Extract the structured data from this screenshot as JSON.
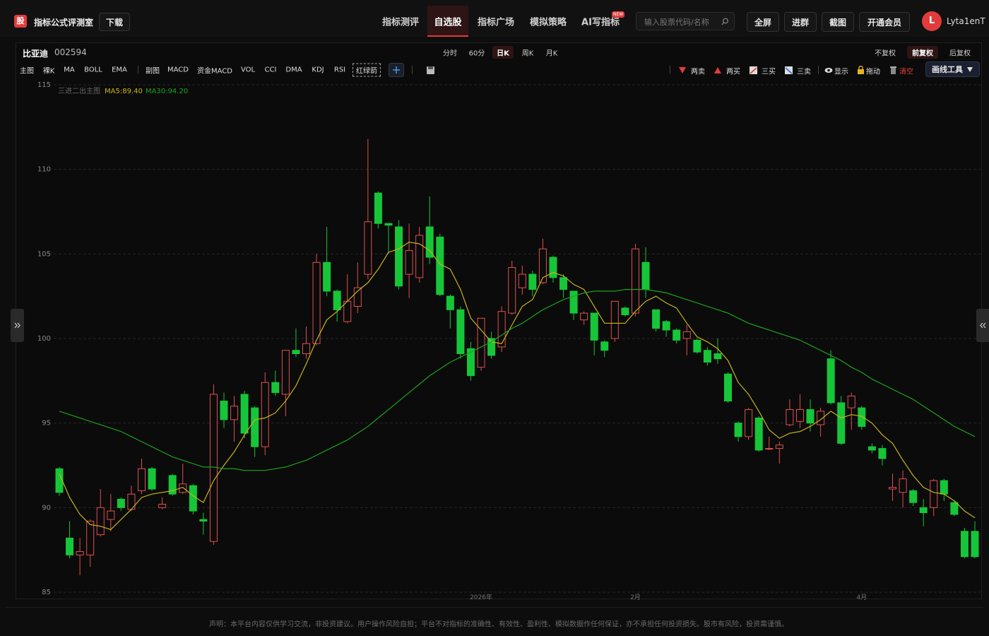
{
  "header": {
    "logo": "股",
    "title": "指标公式评测室",
    "download": "下载",
    "nav": [
      "指标测评",
      "自选股",
      "指标广场",
      "模拟策略",
      "AI写指标"
    ],
    "nav_badge": "NEW",
    "search_placeholder": "输入股票代码/名称",
    "buttons": [
      "全屏",
      "进群",
      "截图",
      "开通会员"
    ],
    "avatar": "L",
    "username": "Lyta1enT"
  },
  "stock": {
    "name": "比亚迪",
    "code": "002594"
  },
  "periods": [
    "分时",
    "60分",
    "日K",
    "周K",
    "月K"
  ],
  "adjust": [
    "不复权",
    "前复权",
    "后复权"
  ],
  "main_indicators": [
    "主图",
    "裸K",
    "MA",
    "BOLL",
    "EMA"
  ],
  "sub_indicators": [
    "副图",
    "MACD",
    "资金MACD",
    "VOL",
    "CCI",
    "DMA",
    "KDJ",
    "RSI",
    "红绿箭"
  ],
  "signal_tools": [
    "两卖",
    "两买",
    "三买",
    "三卖",
    "显示",
    "拖动",
    "清空"
  ],
  "draw_tool": "画线工具",
  "footer": "声明：本平台内容仅供学习交流，非投资建议。用户操作风险自担；平台不对指标的准确性、有效性、盈利性、模拟数据作任何保证，亦不承担任何投资损失。股市有风险，投资需谨慎。",
  "chart_data": {
    "type": "candlestick",
    "indicator_label": "三进二出主图",
    "categories": [
      null,
      null,
      null,
      null,
      null,
      null,
      null,
      null,
      null,
      null,
      null,
      null,
      null,
      null,
      null,
      null,
      null,
      null,
      null,
      null,
      null,
      null,
      null,
      null,
      null,
      null,
      null,
      null,
      null,
      null,
      null,
      null,
      null,
      null,
      null,
      null,
      null,
      null,
      null,
      null,
      null,
      "2026年",
      null,
      null,
      null,
      null,
      null,
      null,
      null,
      null,
      null,
      null,
      null,
      null,
      null,
      null,
      "2月",
      null,
      null,
      null,
      null,
      null,
      null,
      null,
      null,
      null,
      null,
      null,
      null,
      null,
      null,
      null,
      null,
      null,
      null,
      null,
      null,
      null,
      "4月",
      null,
      null,
      null,
      null,
      null,
      null,
      null,
      null,
      null,
      null,
      null
    ],
    "open": [
      92.3,
      88.2,
      87.2,
      87.2,
      88.4,
      89.3,
      90.5,
      89.9,
      91.0,
      92.3,
      90.0,
      91.9,
      90.9,
      91.3,
      89.3,
      88.0,
      96.3,
      95.2,
      96.7,
      95.9,
      93.6,
      97.4,
      96.7,
      99.3,
      99.1,
      99.7,
      104.5,
      102.8,
      101.0,
      101.9,
      103.8,
      108.6,
      106.8,
      106.6,
      103.8,
      103.6,
      106.6,
      106.0,
      102.5,
      101.7,
      99.4,
      98.3,
      100.0,
      99.5,
      101.5,
      103.0,
      103.8,
      103.3,
      104.8,
      103.6,
      102.8,
      101.1,
      101.5,
      99.8,
      100.0,
      101.8,
      101.5,
      104.5,
      101.7,
      101.0,
      100.5,
      100.0,
      99.9,
      99.3,
      99.1,
      97.9,
      95.0,
      94.2,
      95.3,
      93.5,
      93.5,
      94.9,
      95.1,
      95.8,
      94.9,
      98.8,
      96.2,
      95.9,
      95.9,
      93.6,
      93.5,
      91.1,
      90.9,
      91.0,
      90.0,
      90.0,
      91.6,
      90.3,
      88.6,
      88.6
    ],
    "high": [
      92.4,
      89.2,
      88.2,
      89.3,
      91.1,
      90.8,
      90.6,
      91.3,
      92.9,
      92.4,
      90.6,
      92.0,
      92.6,
      91.4,
      89.7,
      97.3,
      96.8,
      96.6,
      96.9,
      96.0,
      98.0,
      98.1,
      99.3,
      100.6,
      100.7,
      105.0,
      106.6,
      102.9,
      103.8,
      104.5,
      111.8,
      108.7,
      106.8,
      107.0,
      106.8,
      106.6,
      108.4,
      106.2,
      102.6,
      101.9,
      99.8,
      101.2,
      100.4,
      101.9,
      104.6,
      104.3,
      104.0,
      105.9,
      104.9,
      103.8,
      102.8,
      101.6,
      101.5,
      99.9,
      102.2,
      101.9,
      105.6,
      105.4,
      101.7,
      101.1,
      100.6,
      100.8,
      100.0,
      99.5,
      100.0,
      98.0,
      95.1,
      95.9,
      95.4,
      94.2,
      93.9,
      96.4,
      96.7,
      96.4,
      95.9,
      99.3,
      96.6,
      96.8,
      96.0,
      93.8,
      93.7,
      92.0,
      92.2,
      91.1,
      90.5,
      91.7,
      91.7,
      90.4,
      88.8,
      89.2
    ],
    "low": [
      90.7,
      87.0,
      86.0,
      86.5,
      88.3,
      88.6,
      89.8,
      89.8,
      90.8,
      91.0,
      89.9,
      90.7,
      90.8,
      89.6,
      88.4,
      87.8,
      94.7,
      93.9,
      94.1,
      93.0,
      93.1,
      96.6,
      95.4,
      98.9,
      98.8,
      99.6,
      102.5,
      101.0,
      100.9,
      101.5,
      103.5,
      106.5,
      105.0,
      102.9,
      102.4,
      103.3,
      104.4,
      102.5,
      100.6,
      98.8,
      97.5,
      98.1,
      98.8,
      99.2,
      101.4,
      102.6,
      102.5,
      103.2,
      103.3,
      102.4,
      101.1,
      100.8,
      99.0,
      98.9,
      99.8,
      101.3,
      101.3,
      102.4,
      100.4,
      100.1,
      99.7,
      99.0,
      99.1,
      98.4,
      98.5,
      96.2,
      93.9,
      94.0,
      93.3,
      93.4,
      92.6,
      94.8,
      94.7,
      94.5,
      94.2,
      96.1,
      93.7,
      94.6,
      94.6,
      93.2,
      92.5,
      90.4,
      90.0,
      90.1,
      88.9,
      89.5,
      90.4,
      89.5,
      87.0,
      87.0
    ],
    "close": [
      90.9,
      87.2,
      87.4,
      89.2,
      90.0,
      89.8,
      90.0,
      90.8,
      92.3,
      91.1,
      90.2,
      90.8,
      91.4,
      89.8,
      89.2,
      96.7,
      95.2,
      96.0,
      94.4,
      93.6,
      97.4,
      96.8,
      99.3,
      99.1,
      99.7,
      104.5,
      102.8,
      101.7,
      102.2,
      103.0,
      106.9,
      106.8,
      106.7,
      103.1,
      105.2,
      106.1,
      104.8,
      102.6,
      101.7,
      99.1,
      97.8,
      101.2,
      99.0,
      101.6,
      104.2,
      103.8,
      102.9,
      105.3,
      103.6,
      102.9,
      101.5,
      101.5,
      99.9,
      99.3,
      102.2,
      101.4,
      105.3,
      102.9,
      100.6,
      100.5,
      99.9,
      100.4,
      99.2,
      98.6,
      98.8,
      96.3,
      94.2,
      95.8,
      93.4,
      93.5,
      93.7,
      95.8,
      95.8,
      95.0,
      95.7,
      96.2,
      93.8,
      96.6,
      94.8,
      93.4,
      92.9,
      91.2,
      91.7,
      90.3,
      89.7,
      91.6,
      90.8,
      89.6,
      87.1,
      87.1
    ],
    "up_color": "#e0504f",
    "down_color": "#16c638",
    "lines": [
      {
        "name": "MA5:89.40",
        "color": "#c8b419",
        "values": [
          92.0,
          90.6,
          89.6,
          89.0,
          88.9,
          88.7,
          89.3,
          89.9,
          90.6,
          90.8,
          90.9,
          91.0,
          91.2,
          90.7,
          90.3,
          91.6,
          92.5,
          93.3,
          94.3,
          95.2,
          95.3,
          95.6,
          96.3,
          97.2,
          98.5,
          99.9,
          101.1,
          101.6,
          102.2,
          102.8,
          103.3,
          104.1,
          105.1,
          105.3,
          105.7,
          105.6,
          105.2,
          104.4,
          104.1,
          102.9,
          101.2,
          100.5,
          99.8,
          99.7,
          100.8,
          101.9,
          102.3,
          103.6,
          103.9,
          103.7,
          103.2,
          102.9,
          101.9,
          100.9,
          100.9,
          100.9,
          101.6,
          102.2,
          102.5,
          102.1,
          101.8,
          100.9,
          100.1,
          99.8,
          99.4,
          98.7,
          97.4,
          96.7,
          95.7,
          94.6,
          94.1,
          94.4,
          94.5,
          94.8,
          95.2,
          95.7,
          95.3,
          95.5,
          95.4,
          95.0,
          94.3,
          93.8,
          92.8,
          91.9,
          91.2,
          90.9,
          90.8,
          90.4,
          89.8,
          89.4
        ]
      },
      {
        "name": "MA30:94.20",
        "color": "#1aa31a",
        "values": [
          95.7,
          95.5,
          95.3,
          95.1,
          94.9,
          94.7,
          94.5,
          94.2,
          93.9,
          93.6,
          93.3,
          93.0,
          92.8,
          92.6,
          92.4,
          92.4,
          92.3,
          92.3,
          92.2,
          92.2,
          92.2,
          92.3,
          92.4,
          92.6,
          92.8,
          93.1,
          93.4,
          93.7,
          94.0,
          94.4,
          94.8,
          95.3,
          95.8,
          96.3,
          96.8,
          97.3,
          97.8,
          98.2,
          98.6,
          98.9,
          99.2,
          99.5,
          99.8,
          100.2,
          100.6,
          100.9,
          101.3,
          101.7,
          102.0,
          102.3,
          102.5,
          102.7,
          102.8,
          102.8,
          102.8,
          102.9,
          102.9,
          102.9,
          102.8,
          102.7,
          102.5,
          102.3,
          102.1,
          101.9,
          101.7,
          101.5,
          101.2,
          100.9,
          100.7,
          100.5,
          100.3,
          100.1,
          99.9,
          99.6,
          99.3,
          99.0,
          98.7,
          98.3,
          98.0,
          97.6,
          97.3,
          97.0,
          96.7,
          96.4,
          96.0,
          95.6,
          95.2,
          94.8,
          94.5,
          94.2
        ]
      }
    ],
    "ylim": [
      85,
      115
    ],
    "yticks": [
      85,
      90,
      95,
      100,
      105,
      110,
      115
    ],
    "grid": true
  }
}
